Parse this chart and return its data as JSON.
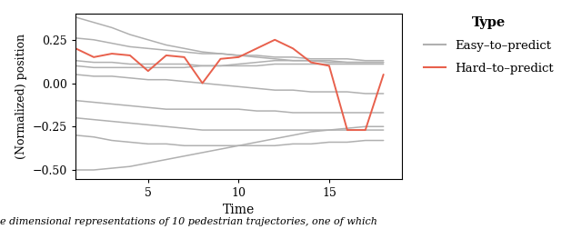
{
  "title": "",
  "xlabel": "Time",
  "ylabel": "(Normalized) position",
  "xlim": [
    1,
    19
  ],
  "ylim": [
    -0.55,
    0.4
  ],
  "yticks": [
    -0.5,
    -0.25,
    0.0,
    0.25
  ],
  "xticks": [
    5,
    10,
    15
  ],
  "gray_color": "#b0b0b0",
  "red_color": "#e8604c",
  "background_color": "#ffffff",
  "easy_trajectories": [
    [
      0.38,
      0.35,
      0.32,
      0.28,
      0.25,
      0.22,
      0.2,
      0.18,
      0.17,
      0.16,
      0.15,
      0.14,
      0.13,
      0.13,
      0.12,
      0.12,
      0.12,
      0.12
    ],
    [
      0.26,
      0.25,
      0.23,
      0.21,
      0.2,
      0.19,
      0.18,
      0.17,
      0.17,
      0.16,
      0.16,
      0.15,
      0.15,
      0.14,
      0.14,
      0.14,
      0.13,
      0.13
    ],
    [
      0.13,
      0.12,
      0.12,
      0.11,
      0.11,
      0.11,
      0.11,
      0.1,
      0.1,
      0.1,
      0.1,
      0.11,
      0.11,
      0.11,
      0.11,
      0.11,
      0.11,
      0.11
    ],
    [
      0.1,
      0.09,
      0.09,
      0.09,
      0.09,
      0.09,
      0.09,
      0.1,
      0.1,
      0.11,
      0.12,
      0.13,
      0.13,
      0.13,
      0.13,
      0.12,
      0.12,
      0.12
    ],
    [
      0.05,
      0.04,
      0.04,
      0.03,
      0.02,
      0.02,
      0.01,
      0.0,
      -0.01,
      -0.02,
      -0.03,
      -0.04,
      -0.04,
      -0.05,
      -0.05,
      -0.05,
      -0.06,
      -0.06
    ],
    [
      -0.1,
      -0.11,
      -0.12,
      -0.13,
      -0.14,
      -0.15,
      -0.15,
      -0.15,
      -0.15,
      -0.15,
      -0.16,
      -0.16,
      -0.17,
      -0.17,
      -0.17,
      -0.17,
      -0.17,
      -0.17
    ],
    [
      -0.2,
      -0.21,
      -0.22,
      -0.23,
      -0.24,
      -0.25,
      -0.26,
      -0.27,
      -0.27,
      -0.27,
      -0.27,
      -0.27,
      -0.27,
      -0.27,
      -0.27,
      -0.27,
      -0.27,
      -0.27
    ],
    [
      -0.3,
      -0.31,
      -0.33,
      -0.34,
      -0.35,
      -0.35,
      -0.36,
      -0.36,
      -0.36,
      -0.36,
      -0.36,
      -0.36,
      -0.35,
      -0.35,
      -0.34,
      -0.34,
      -0.33,
      -0.33
    ],
    [
      -0.5,
      -0.5,
      -0.49,
      -0.48,
      -0.46,
      -0.44,
      -0.42,
      -0.4,
      -0.38,
      -0.36,
      -0.34,
      -0.32,
      -0.3,
      -0.28,
      -0.27,
      -0.26,
      -0.25,
      -0.25
    ]
  ],
  "hard_trajectory": [
    0.2,
    0.15,
    0.17,
    0.16,
    0.07,
    0.16,
    0.15,
    0.0,
    0.14,
    0.15,
    0.2,
    0.25,
    0.2,
    0.12,
    0.1,
    -0.27,
    -0.27,
    0.05
  ],
  "legend_title": "Type",
  "legend_easy": "Easy–to–predict",
  "legend_hard": "Hard–to–predict",
  "caption": "e dimensional representations of 10 pedestrian trajectories, one of which",
  "fig_width": 6.4,
  "fig_height": 2.52
}
